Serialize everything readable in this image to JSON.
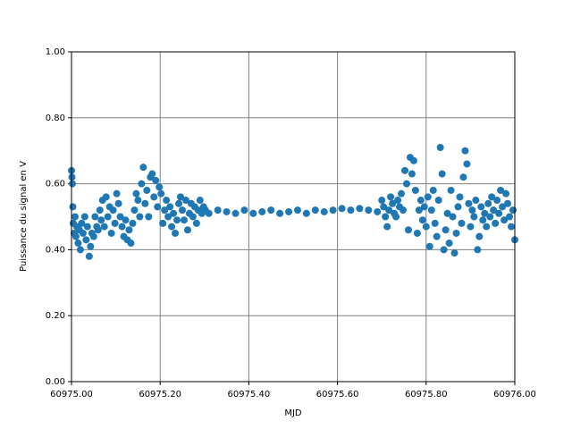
{
  "chart_data": {
    "type": "scatter",
    "x_label": "MJD",
    "y_label": "Puissance du signal en V",
    "color": "#1f77b4",
    "grid": true,
    "xlim": [
      60975.0,
      60976.0
    ],
    "xticks": [
      {
        "value": 60975.0,
        "label": "60975.00"
      },
      {
        "value": 60975.2,
        "label": "60975.20"
      },
      {
        "value": 60975.4,
        "label": "60975.40"
      },
      {
        "value": 60975.6,
        "label": "60975.60"
      },
      {
        "value": 60975.8,
        "label": "60975.80"
      },
      {
        "value": 60976.0,
        "label": "60976.00"
      }
    ],
    "ylim": [
      0,
      1
    ],
    "yticks": [
      {
        "value": 0,
        "label": "0.00"
      },
      {
        "value": 0.2,
        "label": "0.20"
      },
      {
        "value": 0.4,
        "label": "0.40"
      },
      {
        "value": 0.6,
        "label": "0.60"
      },
      {
        "value": 0.8,
        "label": "0.80"
      },
      {
        "value": 1,
        "label": "1.00"
      }
    ],
    "x": [
      60975.0,
      60975.001,
      60975.002,
      60975.003,
      60975.004,
      60975.006,
      60975.008,
      60975.01,
      60975.012,
      60975.015,
      60975.018,
      60975.02,
      60975.023,
      60975.026,
      60975.03,
      60975.033,
      60975.036,
      60975.04,
      60975.043,
      60975.046,
      60975.05,
      60975.053,
      60975.057,
      60975.06,
      60975.064,
      60975.067,
      60975.07,
      60975.074,
      60975.078,
      60975.082,
      60975.086,
      60975.09,
      60975.094,
      60975.098,
      60975.102,
      60975.106,
      60975.11,
      60975.114,
      60975.118,
      60975.122,
      60975.126,
      60975.13,
      60975.134,
      60975.138,
      60975.142,
      60975.146,
      60975.15,
      60975.154,
      60975.158,
      60975.162,
      60975.166,
      60975.17,
      60975.174,
      60975.178,
      60975.182,
      60975.186,
      60975.19,
      60975.194,
      60975.198,
      60975.202,
      60975.206,
      60975.21,
      60975.214,
      60975.218,
      60975.222,
      60975.226,
      60975.23,
      60975.234,
      60975.238,
      60975.242,
      60975.246,
      60975.25,
      60975.254,
      60975.258,
      60975.262,
      60975.266,
      60975.27,
      60975.274,
      60975.278,
      60975.282,
      60975.286,
      60975.29,
      60975.294,
      60975.298,
      60975.302,
      60975.31,
      60975.33,
      60975.35,
      60975.37,
      60975.39,
      60975.41,
      60975.43,
      60975.45,
      60975.47,
      60975.49,
      60975.51,
      60975.53,
      60975.55,
      60975.57,
      60975.59,
      60975.61,
      60975.63,
      60975.65,
      60975.67,
      60975.69,
      60975.7,
      60975.704,
      60975.708,
      60975.712,
      60975.716,
      60975.72,
      60975.724,
      60975.728,
      60975.732,
      60975.736,
      60975.74,
      60975.744,
      60975.748,
      60975.752,
      60975.756,
      60975.76,
      60975.764,
      60975.768,
      60975.772,
      60975.776,
      60975.78,
      60975.784,
      60975.788,
      60975.792,
      60975.796,
      60975.8,
      60975.804,
      60975.808,
      60975.812,
      60975.816,
      60975.82,
      60975.824,
      60975.828,
      60975.832,
      60975.836,
      60975.84,
      60975.844,
      60975.848,
      60975.852,
      60975.856,
      60975.86,
      60975.864,
      60975.868,
      60975.872,
      60975.876,
      60975.88,
      60975.884,
      60975.888,
      60975.892,
      60975.896,
      60975.9,
      60975.904,
      60975.908,
      60975.912,
      60975.916,
      60975.92,
      60975.924,
      60975.928,
      60975.932,
      60975.936,
      60975.94,
      60975.944,
      60975.948,
      60975.952,
      60975.956,
      60975.96,
      60975.964,
      60975.968,
      60975.972,
      60975.976,
      60975.98,
      60975.984,
      60975.988,
      60975.992,
      60975.996,
      60976.0
    ],
    "values": [
      0.64,
      0.62,
      0.6,
      0.53,
      0.48,
      0.45,
      0.5,
      0.44,
      0.47,
      0.42,
      0.46,
      0.4,
      0.48,
      0.45,
      0.5,
      0.43,
      0.47,
      0.38,
      0.41,
      0.45,
      0.44,
      0.5,
      0.47,
      0.46,
      0.52,
      0.49,
      0.55,
      0.47,
      0.56,
      0.5,
      0.53,
      0.45,
      0.52,
      0.48,
      0.57,
      0.54,
      0.5,
      0.47,
      0.44,
      0.49,
      0.43,
      0.46,
      0.42,
      0.48,
      0.52,
      0.57,
      0.55,
      0.5,
      0.6,
      0.65,
      0.54,
      0.58,
      0.5,
      0.62,
      0.63,
      0.56,
      0.61,
      0.53,
      0.59,
      0.57,
      0.48,
      0.52,
      0.55,
      0.5,
      0.53,
      0.47,
      0.51,
      0.45,
      0.49,
      0.54,
      0.56,
      0.52,
      0.49,
      0.55,
      0.46,
      0.51,
      0.54,
      0.5,
      0.53,
      0.48,
      0.52,
      0.55,
      0.51,
      0.53,
      0.52,
      0.51,
      0.52,
      0.515,
      0.51,
      0.52,
      0.51,
      0.515,
      0.52,
      0.51,
      0.515,
      0.52,
      0.51,
      0.52,
      0.515,
      0.52,
      0.525,
      0.52,
      0.525,
      0.52,
      0.515,
      0.55,
      0.53,
      0.5,
      0.47,
      0.52,
      0.56,
      0.54,
      0.51,
      0.5,
      0.55,
      0.53,
      0.57,
      0.52,
      0.64,
      0.6,
      0.46,
      0.68,
      0.63,
      0.67,
      0.58,
      0.45,
      0.52,
      0.55,
      0.49,
      0.53,
      0.47,
      0.56,
      0.41,
      0.52,
      0.58,
      0.48,
      0.44,
      0.55,
      0.71,
      0.63,
      0.4,
      0.46,
      0.51,
      0.42,
      0.58,
      0.5,
      0.39,
      0.45,
      0.53,
      0.56,
      0.48,
      0.62,
      0.7,
      0.66,
      0.54,
      0.47,
      0.52,
      0.5,
      0.55,
      0.4,
      0.44,
      0.53,
      0.49,
      0.51,
      0.47,
      0.54,
      0.5,
      0.56,
      0.52,
      0.48,
      0.55,
      0.51,
      0.58,
      0.53,
      0.49,
      0.57,
      0.54,
      0.5,
      0.47,
      0.52,
      0.43
    ]
  }
}
